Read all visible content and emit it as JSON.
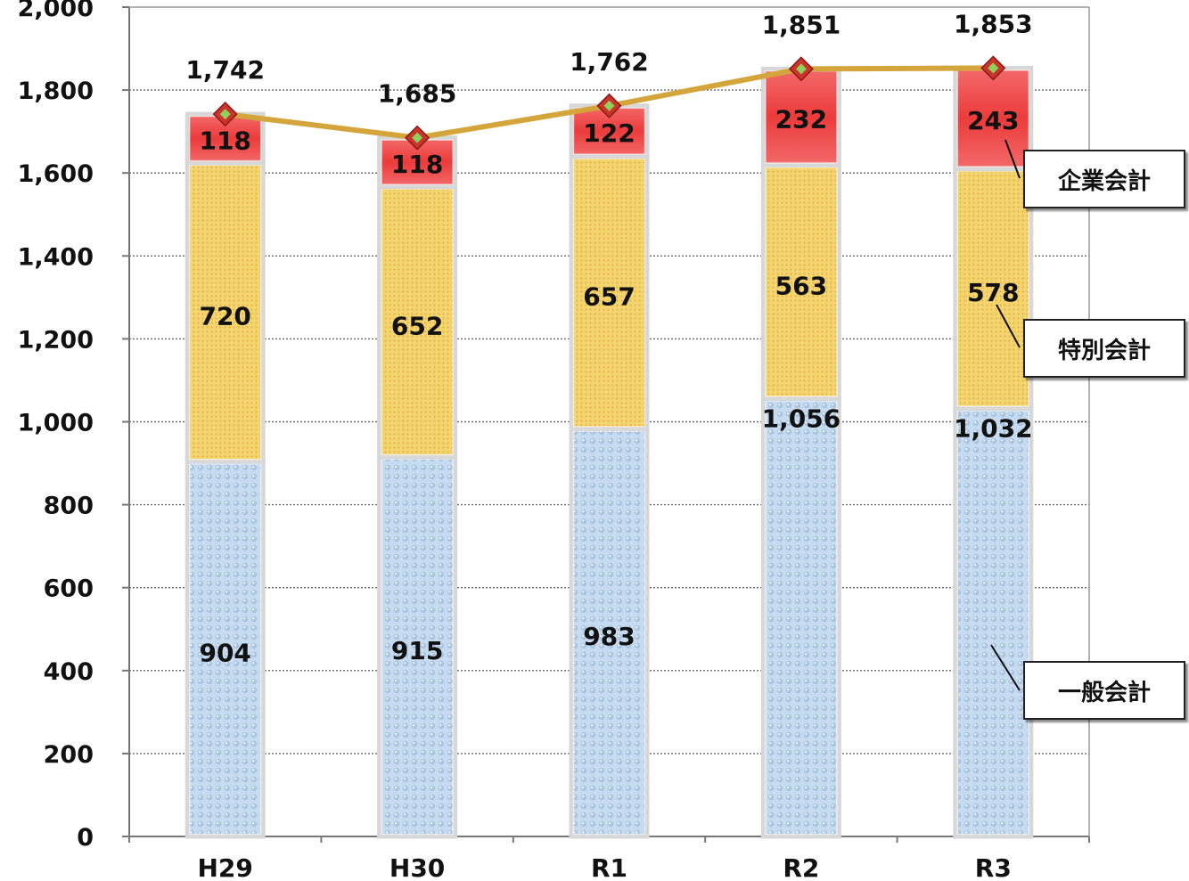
{
  "chart_data": {
    "type": "bar",
    "stacked": true,
    "categories": [
      "H29",
      "H30",
      "R1",
      "R2",
      "R3"
    ],
    "series": [
      {
        "name": "一般会計",
        "values": [
          904,
          915,
          983,
          1056,
          1032
        ],
        "color": "#bcd3ea"
      },
      {
        "name": "特別会計",
        "values": [
          720,
          652,
          657,
          563,
          578
        ],
        "color": "#f2d06a"
      },
      {
        "name": "企業会計",
        "values": [
          118,
          118,
          122,
          232,
          243
        ],
        "color": "#ef4b4b"
      }
    ],
    "totals": {
      "values": [
        1742,
        1685,
        1762,
        1851,
        1853
      ],
      "labels": [
        "1,742",
        "1,685",
        "1,762",
        "1,851",
        "1,853"
      ],
      "line_color": "#d4a53a"
    },
    "value_labels": [
      [
        "904",
        "915",
        "983",
        "1,056",
        "1,032"
      ],
      [
        "720",
        "652",
        "657",
        "563",
        "578"
      ],
      [
        "118",
        "118",
        "122",
        "232",
        "243"
      ]
    ],
    "yticks": [
      "0",
      "200",
      "400",
      "600",
      "800",
      "1,000",
      "1,200",
      "1,400",
      "1,600",
      "1,800",
      "2,000"
    ],
    "ylim": [
      0,
      2000
    ],
    "grid": true,
    "legend_position": "right",
    "title": "",
    "xlabel": "",
    "ylabel": ""
  }
}
